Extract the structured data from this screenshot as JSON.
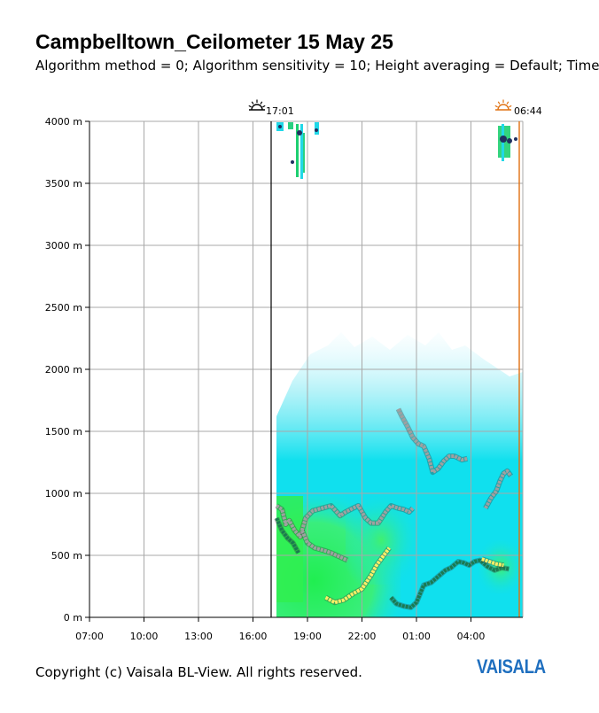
{
  "title": "Campbelltown_Ceilometer 15 May 25",
  "subtitle": "Algorithm method = 0; Algorithm sensitivity = 10; Height averaging = Default; Time",
  "copyright": "Copyright (c) Vaisala BL-View. All rights reserved.",
  "logo": "VAISALA",
  "colors": {
    "grid": "#a8a8a8",
    "sunset": "#000000",
    "sunrise": "#e07010",
    "backscatter_low": "#c8f4fa",
    "backscatter_mid": "#00e4f0",
    "backscatter_high": "#20e860",
    "layer_gray": "#a0a0a0",
    "layer_green": "#1a7a50",
    "layer_yellow": "#ffee66"
  },
  "chart_data": {
    "type": "heatmap",
    "title": "Campbelltown_Ceilometer 15 May 25",
    "ylim": [
      0,
      4000
    ],
    "xlim": [
      "07:00",
      "07:00"
    ],
    "y_ticks": [
      "0 m",
      "500 m",
      "1000 m",
      "1500 m",
      "2000 m",
      "2500 m",
      "3000 m",
      "3500 m",
      "4000 m"
    ],
    "x_ticks": [
      "07:00",
      "10:00",
      "13:00",
      "16:00",
      "19:00",
      "22:00",
      "01:00",
      "04:00"
    ],
    "grid": true,
    "annotations": [
      {
        "kind": "sunset",
        "time": "17:01",
        "label": "17:01"
      },
      {
        "kind": "sunrise",
        "time": "06:44",
        "label": "06:44"
      }
    ],
    "data_start": "17:15",
    "series": [
      {
        "color": "#a0a0a0",
        "points": [
          [
            17.3,
            900
          ],
          [
            17.6,
            870
          ],
          [
            17.8,
            750
          ],
          [
            18.0,
            780
          ],
          [
            18.3,
            700
          ],
          [
            18.6,
            650
          ],
          [
            18.9,
            800
          ],
          [
            19.3,
            860
          ],
          [
            19.8,
            880
          ],
          [
            20.3,
            900
          ],
          [
            20.8,
            820
          ],
          [
            21.1,
            850
          ],
          [
            21.5,
            880
          ],
          [
            21.8,
            900
          ],
          [
            22.2,
            800
          ],
          [
            22.5,
            760
          ],
          [
            22.9,
            760
          ],
          [
            23.3,
            850
          ],
          [
            23.6,
            900
          ],
          [
            24.0,
            880
          ],
          [
            24.3,
            870
          ],
          [
            24.6,
            850
          ],
          [
            24.8,
            880
          ]
        ]
      },
      {
        "color": "#a0a0a0",
        "points": [
          [
            18.7,
            700
          ],
          [
            19.0,
            600
          ],
          [
            19.4,
            560
          ],
          [
            19.9,
            540
          ],
          [
            20.3,
            520
          ],
          [
            20.6,
            500
          ],
          [
            20.9,
            480
          ],
          [
            21.2,
            460
          ]
        ]
      },
      {
        "color": "#a0a0a0",
        "points": [
          [
            24.0,
            1680
          ],
          [
            24.2,
            1620
          ],
          [
            24.5,
            1540
          ],
          [
            24.8,
            1450
          ],
          [
            25.1,
            1400
          ],
          [
            25.4,
            1380
          ],
          [
            25.7,
            1280
          ],
          [
            25.9,
            1170
          ],
          [
            26.2,
            1200
          ],
          [
            26.5,
            1260
          ],
          [
            26.8,
            1300
          ],
          [
            27.1,
            1300
          ],
          [
            27.5,
            1270
          ],
          [
            27.8,
            1280
          ]
        ]
      },
      {
        "color": "#a0a0a0",
        "points": [
          [
            28.8,
            880
          ],
          [
            29.1,
            960
          ],
          [
            29.4,
            1020
          ],
          [
            29.6,
            1100
          ],
          [
            29.8,
            1160
          ],
          [
            30.0,
            1180
          ],
          [
            30.2,
            1140
          ]
        ]
      },
      {
        "color": "#1a7a50",
        "points": [
          [
            17.3,
            800
          ],
          [
            17.6,
            700
          ],
          [
            17.9,
            640
          ],
          [
            18.2,
            600
          ],
          [
            18.5,
            520
          ]
        ]
      },
      {
        "color": "#1a7a50",
        "points": [
          [
            23.6,
            160
          ],
          [
            23.9,
            110
          ],
          [
            24.3,
            90
          ],
          [
            24.7,
            80
          ],
          [
            25.0,
            120
          ],
          [
            25.4,
            260
          ],
          [
            25.8,
            280
          ],
          [
            26.2,
            330
          ],
          [
            26.6,
            380
          ],
          [
            26.9,
            400
          ],
          [
            27.3,
            450
          ],
          [
            27.6,
            440
          ],
          [
            27.9,
            420
          ],
          [
            28.2,
            450
          ],
          [
            28.5,
            460
          ],
          [
            28.9,
            410
          ],
          [
            29.3,
            380
          ],
          [
            29.7,
            400
          ],
          [
            30.1,
            390
          ]
        ]
      },
      {
        "color": "#ffee66",
        "points": [
          [
            20.0,
            160
          ],
          [
            20.5,
            120
          ],
          [
            21.0,
            140
          ],
          [
            21.5,
            190
          ],
          [
            22.0,
            230
          ],
          [
            22.5,
            340
          ],
          [
            22.8,
            420
          ],
          [
            23.2,
            500
          ],
          [
            23.5,
            560
          ]
        ]
      },
      {
        "color": "#ffee66",
        "points": [
          [
            28.6,
            470
          ],
          [
            29.0,
            450
          ],
          [
            29.4,
            430
          ],
          [
            29.8,
            420
          ]
        ]
      }
    ]
  }
}
